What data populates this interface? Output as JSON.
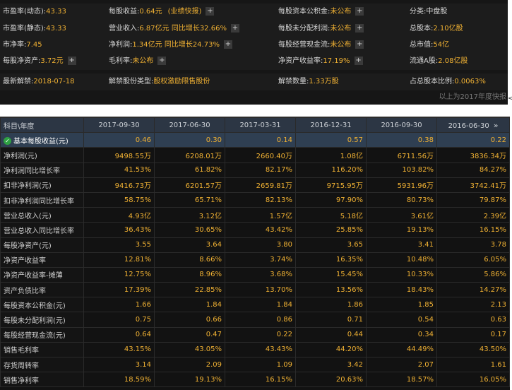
{
  "summary": {
    "rows": [
      [
        {
          "label": "市盈率(动态):",
          "value": "43.33"
        },
        {
          "label": "每股收益:",
          "value": "0.64元",
          "extra": "(业绩快报)",
          "plus": true
        },
        {
          "label": "每股资本公积金:",
          "value": "未公布",
          "plus": true
        },
        {
          "label": "分类:",
          "value": "中盘股",
          "value_color": "#d8d8d8"
        }
      ],
      [
        {
          "label": "市盈率(静态):",
          "value": "43.33"
        },
        {
          "label": "营业收入:",
          "value": "6.87亿元 同比增长32.66%",
          "plus": true
        },
        {
          "label": "每股未分配利润:",
          "value": "未公布",
          "plus": true
        },
        {
          "label": "总股本:",
          "value": "2.10亿股"
        }
      ],
      [
        {
          "label": "市净率:",
          "value": "7.45"
        },
        {
          "label": "净利润:",
          "value": "1.34亿元 同比增长24.73%",
          "plus": true
        },
        {
          "label": "每股经营现金流:",
          "value": "未公布",
          "plus": true
        },
        {
          "label": "总市值:",
          "value": "54亿"
        }
      ],
      [
        {
          "label": "每股净资产:",
          "value": "3.72元",
          "plus": true
        },
        {
          "label": "毛利率:",
          "value": "未公布",
          "plus": true
        },
        {
          "label": "净资产收益率:",
          "value": "17.19%",
          "plus": true
        },
        {
          "label": "流通A股:",
          "value": "2.08亿股"
        }
      ],
      [
        {
          "label": "最新解禁:",
          "value": "2018-07-18"
        },
        {
          "label": "解禁股份类型:",
          "value": "股权激励限售股份"
        },
        {
          "label": "解禁数量:",
          "value": "1.33万股"
        },
        {
          "label": "占总股本比例:",
          "value": "0.0063%"
        }
      ]
    ],
    "note": "以上为2017年度快报",
    "edge_mark": "<"
  },
  "table": {
    "corner": "科目\\年度",
    "columns": [
      "2017-09-30",
      "2017-06-30",
      "2017-03-31",
      "2016-12-31",
      "2016-09-30",
      "2016-06-30"
    ],
    "more_icon": "»",
    "rows": [
      {
        "label": "基本每股收益(元)",
        "highlight": true,
        "values": [
          "0.46",
          "0.30",
          "0.14",
          "0.57",
          "0.38",
          "0.22"
        ]
      },
      {
        "label": "净利润(元)",
        "values": [
          "9498.55万",
          "6208.01万",
          "2660.40万",
          "1.08亿",
          "6711.56万",
          "3836.34万"
        ]
      },
      {
        "label": "净利润同比增长率",
        "values": [
          "41.53%",
          "61.82%",
          "82.17%",
          "116.20%",
          "103.82%",
          "84.27%"
        ]
      },
      {
        "label": "扣非净利润(元)",
        "values": [
          "9416.73万",
          "6201.57万",
          "2659.81万",
          "9715.95万",
          "5931.96万",
          "3742.41万"
        ]
      },
      {
        "label": "扣非净利润同比增长率",
        "values": [
          "58.75%",
          "65.71%",
          "82.13%",
          "97.90%",
          "80.73%",
          "79.87%"
        ]
      },
      {
        "label": "营业总收入(元)",
        "values": [
          "4.93亿",
          "3.12亿",
          "1.57亿",
          "5.18亿",
          "3.61亿",
          "2.39亿"
        ]
      },
      {
        "label": "营业总收入同比增长率",
        "values": [
          "36.43%",
          "30.65%",
          "43.42%",
          "25.85%",
          "19.13%",
          "16.15%"
        ]
      },
      {
        "label": "每股净资产(元)",
        "values": [
          "3.55",
          "3.64",
          "3.80",
          "3.65",
          "3.41",
          "3.78"
        ]
      },
      {
        "label": "净资产收益率",
        "values": [
          "12.81%",
          "8.66%",
          "3.74%",
          "16.35%",
          "10.48%",
          "6.05%"
        ]
      },
      {
        "label": "净资产收益率-摊薄",
        "values": [
          "12.75%",
          "8.96%",
          "3.68%",
          "15.45%",
          "10.33%",
          "5.86%"
        ]
      },
      {
        "label": "资产负债比率",
        "values": [
          "17.39%",
          "22.85%",
          "13.70%",
          "13.56%",
          "18.43%",
          "14.27%"
        ]
      },
      {
        "label": "每股资本公积金(元)",
        "values": [
          "1.66",
          "1.84",
          "1.84",
          "1.86",
          "1.85",
          "2.13"
        ]
      },
      {
        "label": "每股未分配利润(元)",
        "values": [
          "0.75",
          "0.66",
          "0.86",
          "0.71",
          "0.54",
          "0.63"
        ]
      },
      {
        "label": "每股经营现金流(元)",
        "values": [
          "0.64",
          "0.47",
          "0.22",
          "0.44",
          "0.34",
          "0.17"
        ]
      },
      {
        "label": "销售毛利率",
        "values": [
          "43.15%",
          "43.05%",
          "43.43%",
          "44.20%",
          "44.49%",
          "43.50%"
        ]
      },
      {
        "label": "存货周转率",
        "values": [
          "3.14",
          "2.09",
          "1.09",
          "3.42",
          "2.07",
          "1.61"
        ]
      },
      {
        "label": "销售净利率",
        "values": [
          "18.59%",
          "19.13%",
          "16.15%",
          "20.63%",
          "18.57%",
          "16.05%"
        ]
      }
    ]
  },
  "colors": {
    "accent_value": "#f0b133",
    "header_bg": "#2c3644",
    "highlight_row": "#2f3f52",
    "check": "#2ea043"
  },
  "icons": {
    "plus": "plus-icon",
    "check": "check-circle-icon",
    "more": "double-chevron-right-icon"
  }
}
